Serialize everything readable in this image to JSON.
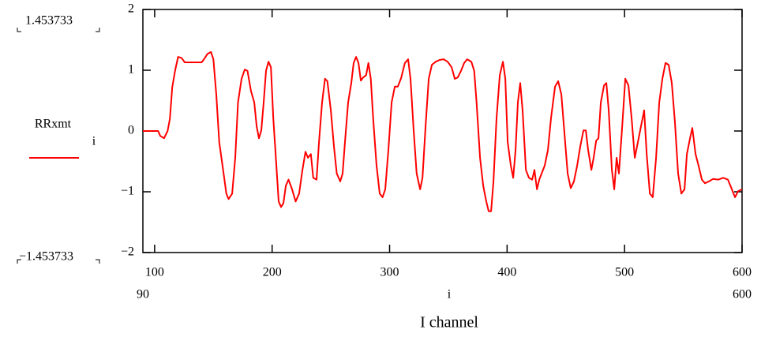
{
  "chart_data": {
    "type": "line",
    "title": "I channel",
    "xlabel": "i",
    "legend_subscript": "i",
    "y_range_labels": [
      "1.453733",
      "−1.453733"
    ],
    "x_range_labels": [
      "90",
      "600"
    ],
    "xlim": [
      90,
      600
    ],
    "ylim": [
      -2,
      2
    ],
    "xticks": [
      100,
      200,
      300,
      400,
      500,
      600
    ],
    "yticks": [
      2,
      1,
      0,
      {
        "value": -1,
        "label": "−1"
      },
      {
        "value": -2,
        "label": "−2"
      }
    ],
    "series": [
      {
        "name": "RRxmt",
        "color": "#ff0000",
        "x": [
          90,
          103,
          104.8,
          108,
          111,
          113,
          115,
          117.5,
          120,
          123,
          125.6,
          133,
          140,
          142,
          145,
          148,
          150,
          152.5,
          155,
          158,
          161,
          163,
          166,
          168.6,
          171,
          174,
          176.7,
          179,
          182,
          184.8,
          186.8,
          188.8,
          190.8,
          192.8,
          194.8,
          196.9,
          199,
          201,
          203.6,
          205.6,
          207.6,
          209.6,
          211.7,
          214,
          217,
          220,
          223,
          225.8,
          228.4,
          230.5,
          233,
          235,
          237.8,
          239.9,
          242.5,
          245,
          247,
          250,
          252.6,
          255,
          258,
          260,
          262,
          264.7,
          267.4,
          269.4,
          271.5,
          273.5,
          275.5,
          277.5,
          280,
          282,
          284,
          286,
          288.9,
          291.6,
          294,
          296.3,
          299,
          301.7,
          304.4,
          307,
          309.8,
          313,
          315.8,
          317.8,
          320.5,
          323,
          326,
          328,
          330.6,
          333.3,
          336,
          339.3,
          342.7,
          346,
          349.4,
          352.8,
          355.5,
          358,
          360.8,
          363.5,
          366,
          369.6,
          372,
          374,
          377,
          379.7,
          382.3,
          384.3,
          386.4,
          388.4,
          391,
          393.8,
          396.5,
          398.5,
          400.5,
          403.2,
          405.2,
          407.2,
          409.2,
          411.2,
          413.2,
          416,
          418.6,
          421.3,
          423.3,
          425.4,
          427.4,
          429.4,
          432,
          434.8,
          437.4,
          440.8,
          443.5,
          446.2,
          448.9,
          451.6,
          454.2,
          456.9,
          459.6,
          462.3,
          465,
          467,
          469,
          471.7,
          473.7,
          475.8,
          477.8,
          479.8,
          482.5,
          484.5,
          486.5,
          489.2,
          491.2,
          493.2,
          495.2,
          498,
          500.6,
          503.3,
          506,
          508.7,
          511.4,
          514,
          516.7,
          518.8,
          521.5,
          524,
          526.8,
          529.5,
          532.2,
          534.8,
          537.5,
          540.2,
          542.9,
          545.6,
          548.3,
          551,
          553,
          555.7,
          557.7,
          560.4,
          563,
          565.8,
          568.5,
          571.8,
          575.2,
          579.9,
          583.9,
          588,
          591.3,
          594,
          596.7,
          600
        ],
        "values": [
          0,
          0,
          -0.08,
          -0.12,
          0,
          0.2,
          0.72,
          1.0,
          1.22,
          1.2,
          1.13,
          1.13,
          1.13,
          1.18,
          1.27,
          1.3,
          1.18,
          0.6,
          -0.18,
          -0.6,
          -1.03,
          -1.12,
          -1.03,
          -0.44,
          0.47,
          0.86,
          1.01,
          0.99,
          0.66,
          0.47,
          0.08,
          -0.12,
          0.01,
          0.47,
          0.99,
          1.14,
          1.05,
          0.21,
          -0.57,
          -1.16,
          -1.25,
          -1.19,
          -0.9,
          -0.8,
          -0.96,
          -1.16,
          -1.03,
          -0.64,
          -0.34,
          -0.44,
          -0.38,
          -0.77,
          -0.8,
          -0.18,
          0.47,
          0.86,
          0.82,
          0.34,
          -0.25,
          -0.7,
          -0.83,
          -0.7,
          -0.18,
          0.47,
          0.79,
          1.12,
          1.22,
          1.12,
          0.83,
          0.88,
          0.92,
          1.12,
          0.86,
          0.21,
          -0.57,
          -1.03,
          -1.09,
          -0.96,
          -0.31,
          0.47,
          0.73,
          0.73,
          0.87,
          1.12,
          1.18,
          0.86,
          0.01,
          -0.7,
          -0.96,
          -0.77,
          0.08,
          0.86,
          1.09,
          1.14,
          1.17,
          1.18,
          1.14,
          1.05,
          0.86,
          0.88,
          0.99,
          1.12,
          1.18,
          1.14,
          0.99,
          0.47,
          -0.44,
          -0.9,
          -1.16,
          -1.32,
          -1.32,
          -0.83,
          0.21,
          0.92,
          1.14,
          0.86,
          -0.18,
          -0.57,
          -0.77,
          -0.31,
          0.47,
          0.79,
          0.34,
          -0.64,
          -0.77,
          -0.8,
          -0.64,
          -0.96,
          -0.8,
          -0.7,
          -0.57,
          -0.31,
          0.21,
          0.73,
          0.82,
          0.6,
          -0.05,
          -0.7,
          -0.94,
          -0.83,
          -0.57,
          -0.25,
          0.01,
          0.01,
          -0.31,
          -0.64,
          -0.44,
          -0.16,
          -0.12,
          0.47,
          0.75,
          0.79,
          0.34,
          -0.64,
          -0.96,
          -0.44,
          -0.7,
          0.08,
          0.86,
          0.75,
          0.21,
          -0.44,
          -0.18,
          0.08,
          0.34,
          -0.38,
          -1.03,
          -1.09,
          -0.44,
          0.47,
          0.86,
          1.12,
          1.09,
          0.79,
          0.14,
          -0.7,
          -1.03,
          -0.96,
          -0.38,
          -0.12,
          0.05,
          -0.38,
          -0.57,
          -0.8,
          -0.86,
          -0.83,
          -0.79,
          -0.8,
          -0.77,
          -0.8,
          -0.96,
          -1.09,
          -0.99,
          -0.96
        ]
      }
    ]
  }
}
